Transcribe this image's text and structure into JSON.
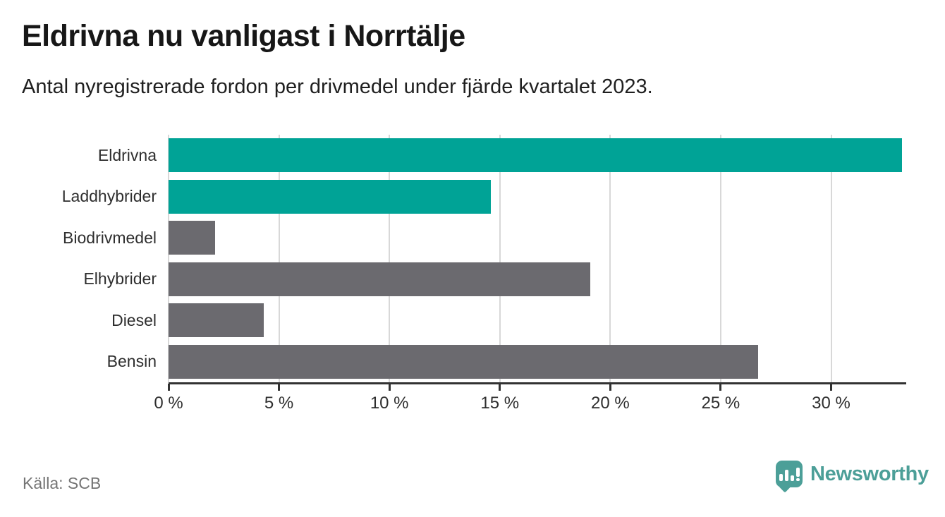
{
  "header": {
    "title": "Eldrivna nu vanligast i Norrtälje",
    "subtitle": "Antal nyregistrerade fordon per drivmedel under fjärde kvartalet 2023."
  },
  "chart_data": {
    "type": "bar",
    "orientation": "horizontal",
    "title": "Eldrivna nu vanligast i Norrtälje",
    "subtitle": "Antal nyregistrerade fordon per drivmedel under fjärde kvartalet 2023.",
    "categories": [
      "Eldrivna",
      "Laddhybrider",
      "Biodrivmedel",
      "Elhybrider",
      "Diesel",
      "Bensin"
    ],
    "values": [
      33.2,
      14.6,
      2.1,
      19.1,
      4.3,
      26.7
    ],
    "bar_colors": [
      "#00a396",
      "#00a396",
      "#6b6a6f",
      "#6b6a6f",
      "#6b6a6f",
      "#6b6a6f"
    ],
    "xlabel": "",
    "ylabel": "",
    "xlim": [
      0,
      33.4
    ],
    "xticks": [
      0,
      5,
      10,
      15,
      20,
      25,
      30
    ],
    "tick_suffix": " %",
    "grid": true,
    "legend": "none",
    "colors": {
      "accent_teal": "#00a396",
      "neutral_gray": "#6b6a6f",
      "gridline": "#d8d8d8",
      "axis": "#323232"
    }
  },
  "footer": {
    "source": "Källa: SCB",
    "brand": "Newsworthy",
    "brand_color": "#4c9f98"
  }
}
